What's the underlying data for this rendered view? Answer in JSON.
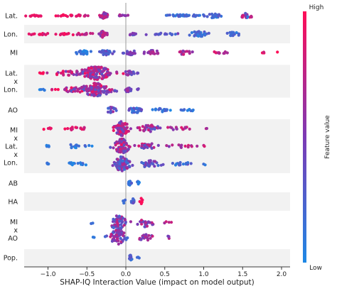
{
  "chart_data": {
    "type": "scatter",
    "subtype": "beeswarm",
    "xlabel": "SHAP-IQ Interaction Value (impact on model output)",
    "xlim": [
      -1.32,
      2.1
    ],
    "xticks": [
      "−1.0",
      "−0.5",
      "0.0",
      "0.5",
      "1.0",
      "1.5",
      "2.0"
    ],
    "xtick_values": [
      -1.0,
      -0.5,
      0.0,
      0.5,
      1.0,
      1.5,
      2.0
    ],
    "grid": false,
    "colorbar": {
      "title": "Feature value",
      "high_label": "High",
      "low_label": "Low",
      "low_color": "#1e88e5",
      "high_color": "#ff0d57"
    },
    "row_band_color": "#f2f2f2",
    "zero_line_color": "#999999",
    "rows": [
      {
        "id": "lat",
        "label_lines": [
          "Lat."
        ],
        "shaded": false,
        "clusters": [
          {
            "center": -1.15,
            "spread": 0.12,
            "n": 14,
            "width": 0.05,
            "cmin": 0.85,
            "cmax": 1.0
          },
          {
            "center": -0.78,
            "spread": 0.13,
            "n": 14,
            "width": 0.05,
            "cmin": 0.8,
            "cmax": 1.0
          },
          {
            "center": -0.55,
            "spread": 0.08,
            "n": 12,
            "width": 0.06,
            "cmin": 0.7,
            "cmax": 0.95
          },
          {
            "center": -0.28,
            "spread": 0.05,
            "n": 28,
            "width": 0.6,
            "cmin": 0.45,
            "cmax": 0.85
          },
          {
            "center": -0.05,
            "spread": 0.08,
            "n": 8,
            "width": 0.08,
            "cmin": 0.4,
            "cmax": 0.7
          },
          {
            "center": 0.75,
            "spread": 0.22,
            "n": 36,
            "width": 0.08,
            "cmin": 0.05,
            "cmax": 0.3
          },
          {
            "center": 1.1,
            "spread": 0.12,
            "n": 26,
            "width": 0.4,
            "cmin": 0.05,
            "cmax": 0.35
          },
          {
            "center": 1.55,
            "spread": 0.1,
            "n": 20,
            "width": 0.4,
            "cmin": 0.05,
            "cmax": 0.9
          }
        ]
      },
      {
        "id": "lon",
        "label_lines": [
          "Lon."
        ],
        "shaded": true,
        "clusters": [
          {
            "center": -1.1,
            "spread": 0.12,
            "n": 12,
            "width": 0.05,
            "cmin": 0.85,
            "cmax": 1.0
          },
          {
            "center": -0.8,
            "spread": 0.13,
            "n": 14,
            "width": 0.05,
            "cmin": 0.8,
            "cmax": 1.0
          },
          {
            "center": -0.55,
            "spread": 0.1,
            "n": 12,
            "width": 0.06,
            "cmin": 0.7,
            "cmax": 0.95
          },
          {
            "center": -0.3,
            "spread": 0.04,
            "n": 30,
            "width": 0.6,
            "cmin": 0.4,
            "cmax": 0.85
          },
          {
            "center": 0.1,
            "spread": 0.1,
            "n": 10,
            "width": 0.08,
            "cmin": 0.25,
            "cmax": 0.6
          },
          {
            "center": 0.5,
            "spread": 0.15,
            "n": 16,
            "width": 0.08,
            "cmin": 0.1,
            "cmax": 0.5
          },
          {
            "center": 0.95,
            "spread": 0.12,
            "n": 24,
            "width": 0.5,
            "cmin": 0.05,
            "cmax": 0.35
          },
          {
            "center": 1.38,
            "spread": 0.08,
            "n": 14,
            "width": 0.3,
            "cmin": 0.05,
            "cmax": 0.3
          }
        ]
      },
      {
        "id": "mi",
        "label_lines": [
          "MI"
        ],
        "shaded": false,
        "clusters": [
          {
            "center": -0.55,
            "spread": 0.1,
            "n": 24,
            "width": 0.35,
            "cmin": 0.0,
            "cmax": 0.2
          },
          {
            "center": -0.25,
            "spread": 0.08,
            "n": 22,
            "width": 0.45,
            "cmin": 0.15,
            "cmax": 0.45
          },
          {
            "center": 0.05,
            "spread": 0.1,
            "n": 18,
            "width": 0.4,
            "cmin": 0.3,
            "cmax": 0.6
          },
          {
            "center": 0.35,
            "spread": 0.1,
            "n": 18,
            "width": 0.35,
            "cmin": 0.45,
            "cmax": 0.75
          },
          {
            "center": 0.75,
            "spread": 0.12,
            "n": 14,
            "width": 0.3,
            "cmin": 0.55,
            "cmax": 0.85
          },
          {
            "center": 1.2,
            "spread": 0.12,
            "n": 10,
            "width": 0.1,
            "cmin": 0.65,
            "cmax": 0.9
          },
          {
            "center": 1.75,
            "spread": 0.06,
            "n": 3,
            "width": 0.05,
            "cmin": 0.75,
            "cmax": 0.95
          },
          {
            "center": 1.95,
            "spread": 0.01,
            "n": 1,
            "width": 0.0,
            "cmin": 0.98,
            "cmax": 1.0
          }
        ]
      },
      {
        "id": "lat-lon-a",
        "label_lines": [],
        "shaded": true,
        "clusters": [
          {
            "center": -1.08,
            "spread": 0.05,
            "n": 4,
            "width": 0.0,
            "cmin": 0.95,
            "cmax": 1.0
          },
          {
            "center": -0.72,
            "spread": 0.2,
            "n": 26,
            "width": 0.25,
            "cmin": 0.5,
            "cmax": 1.0
          },
          {
            "center": -0.38,
            "spread": 0.2,
            "n": 130,
            "width": 1.0,
            "cmin": 0.3,
            "cmax": 0.95
          },
          {
            "center": 0.03,
            "spread": 0.06,
            "n": 14,
            "width": 0.3,
            "cmin": 0.3,
            "cmax": 0.7
          },
          {
            "center": 0.15,
            "spread": 0.02,
            "n": 3,
            "width": 0.0,
            "cmin": 0.3,
            "cmax": 0.5
          }
        ]
      },
      {
        "id": "lat-lon-b",
        "label_lines": [],
        "shaded": true,
        "clusters": [
          {
            "center": -1.08,
            "spread": 0.05,
            "n": 4,
            "width": 0.0,
            "cmin": 0.0,
            "cmax": 0.15
          },
          {
            "center": -0.72,
            "spread": 0.2,
            "n": 26,
            "width": 0.25,
            "cmin": 0.5,
            "cmax": 1.0
          },
          {
            "center": -0.38,
            "spread": 0.2,
            "n": 130,
            "width": 1.0,
            "cmin": 0.3,
            "cmax": 0.95
          },
          {
            "center": 0.03,
            "spread": 0.06,
            "n": 14,
            "width": 0.3,
            "cmin": 0.3,
            "cmax": 0.7
          },
          {
            "center": 0.15,
            "spread": 0.02,
            "n": 3,
            "width": 0.0,
            "cmin": 0.3,
            "cmax": 0.5
          }
        ]
      },
      {
        "id": "ao",
        "label_lines": [
          "AO"
        ],
        "shaded": false,
        "clusters": [
          {
            "center": -0.2,
            "spread": 0.06,
            "n": 18,
            "width": 0.7,
            "cmin": 0.15,
            "cmax": 0.65
          },
          {
            "center": 0.12,
            "spread": 0.08,
            "n": 22,
            "width": 0.7,
            "cmin": 0.05,
            "cmax": 0.45
          },
          {
            "center": 0.45,
            "spread": 0.1,
            "n": 16,
            "width": 0.4,
            "cmin": 0.0,
            "cmax": 0.3
          },
          {
            "center": 0.78,
            "spread": 0.08,
            "n": 10,
            "width": 0.2,
            "cmin": 0.0,
            "cmax": 0.25
          }
        ]
      },
      {
        "id": "mi-lat-lon-a",
        "label_lines": [],
        "shaded": true,
        "clusters": [
          {
            "center": -1.0,
            "spread": 0.05,
            "n": 5,
            "width": 0.0,
            "cmin": 0.85,
            "cmax": 1.0
          },
          {
            "center": -0.65,
            "spread": 0.15,
            "n": 14,
            "width": 0.1,
            "cmin": 0.75,
            "cmax": 1.0
          },
          {
            "center": -0.05,
            "spread": 0.09,
            "n": 80,
            "width": 1.0,
            "cmin": 0.3,
            "cmax": 0.95
          },
          {
            "center": 0.3,
            "spread": 0.12,
            "n": 26,
            "width": 0.4,
            "cmin": 0.25,
            "cmax": 0.9
          },
          {
            "center": 0.7,
            "spread": 0.15,
            "n": 14,
            "width": 0.1,
            "cmin": 0.5,
            "cmax": 0.9
          },
          {
            "center": 1.02,
            "spread": 0.04,
            "n": 2,
            "width": 0.0,
            "cmin": 0.6,
            "cmax": 0.9
          }
        ]
      },
      {
        "id": "mi-lat-lon-b",
        "label_lines": [],
        "shaded": true,
        "clusters": [
          {
            "center": -1.0,
            "spread": 0.05,
            "n": 5,
            "width": 0.0,
            "cmin": 0.0,
            "cmax": 0.2
          },
          {
            "center": -0.65,
            "spread": 0.15,
            "n": 14,
            "width": 0.1,
            "cmin": 0.0,
            "cmax": 0.25
          },
          {
            "center": -0.05,
            "spread": 0.09,
            "n": 80,
            "width": 1.0,
            "cmin": 0.3,
            "cmax": 0.95
          },
          {
            "center": 0.3,
            "spread": 0.12,
            "n": 26,
            "width": 0.4,
            "cmin": 0.25,
            "cmax": 0.9
          },
          {
            "center": 0.7,
            "spread": 0.15,
            "n": 14,
            "width": 0.1,
            "cmin": 0.5,
            "cmax": 0.9
          },
          {
            "center": 1.02,
            "spread": 0.04,
            "n": 2,
            "width": 0.0,
            "cmin": 0.6,
            "cmax": 0.9
          }
        ]
      },
      {
        "id": "mi-lat-lon-c",
        "label_lines": [],
        "shaded": true,
        "clusters": [
          {
            "center": -1.0,
            "spread": 0.05,
            "n": 5,
            "width": 0.0,
            "cmin": 0.0,
            "cmax": 0.2
          },
          {
            "center": -0.65,
            "spread": 0.15,
            "n": 14,
            "width": 0.1,
            "cmin": 0.0,
            "cmax": 0.25
          },
          {
            "center": -0.05,
            "spread": 0.09,
            "n": 80,
            "width": 1.0,
            "cmin": 0.1,
            "cmax": 0.7
          },
          {
            "center": 0.3,
            "spread": 0.12,
            "n": 26,
            "width": 0.4,
            "cmin": 0.1,
            "cmax": 0.6
          },
          {
            "center": 0.7,
            "spread": 0.15,
            "n": 14,
            "width": 0.1,
            "cmin": 0.05,
            "cmax": 0.4
          },
          {
            "center": 1.02,
            "spread": 0.04,
            "n": 2,
            "width": 0.0,
            "cmin": 0.0,
            "cmax": 0.3
          }
        ]
      },
      {
        "id": "ab",
        "label_lines": [
          "AB"
        ],
        "shaded": false,
        "clusters": [
          {
            "center": 0.05,
            "spread": 0.025,
            "n": 16,
            "width": 0.6,
            "cmin": 0.05,
            "cmax": 0.3
          },
          {
            "center": 0.16,
            "spread": 0.02,
            "n": 8,
            "width": 0.5,
            "cmin": 0.0,
            "cmax": 0.2
          }
        ]
      },
      {
        "id": "ha",
        "label_lines": [
          "HA"
        ],
        "shaded": true,
        "clusters": [
          {
            "center": -0.02,
            "spread": 0.02,
            "n": 4,
            "width": 0.4,
            "cmin": 0.1,
            "cmax": 0.3
          },
          {
            "center": 0.1,
            "spread": 0.02,
            "n": 10,
            "width": 0.8,
            "cmin": 0.15,
            "cmax": 0.4
          },
          {
            "center": 0.2,
            "spread": 0.015,
            "n": 6,
            "width": 0.8,
            "cmin": 0.9,
            "cmax": 1.0
          }
        ]
      },
      {
        "id": "mi-ao-a",
        "label_lines": [],
        "shaded": false,
        "clusters": [
          {
            "center": -0.42,
            "spread": 0.03,
            "n": 2,
            "width": 0.0,
            "cmin": 0.05,
            "cmax": 0.2
          },
          {
            "center": -0.1,
            "spread": 0.1,
            "n": 60,
            "width": 1.0,
            "cmin": 0.15,
            "cmax": 0.8
          },
          {
            "center": 0.25,
            "spread": 0.08,
            "n": 22,
            "width": 0.5,
            "cmin": 0.3,
            "cmax": 0.85
          },
          {
            "center": 0.55,
            "spread": 0.04,
            "n": 4,
            "width": 0.1,
            "cmin": 0.4,
            "cmax": 0.8
          }
        ]
      },
      {
        "id": "mi-ao-b",
        "label_lines": [],
        "shaded": false,
        "clusters": [
          {
            "center": -0.42,
            "spread": 0.03,
            "n": 2,
            "width": 0.0,
            "cmin": 0.05,
            "cmax": 0.2
          },
          {
            "center": -0.1,
            "spread": 0.1,
            "n": 60,
            "width": 1.0,
            "cmin": 0.15,
            "cmax": 0.8
          },
          {
            "center": 0.25,
            "spread": 0.08,
            "n": 22,
            "width": 0.5,
            "cmin": 0.3,
            "cmax": 0.85
          },
          {
            "center": 0.55,
            "spread": 0.04,
            "n": 4,
            "width": 0.1,
            "cmin": 0.4,
            "cmax": 0.8
          }
        ]
      },
      {
        "id": "pop",
        "label_lines": [
          "Pop."
        ],
        "shaded": true,
        "clusters": [
          {
            "center": 0.06,
            "spread": 0.025,
            "n": 14,
            "width": 0.6,
            "cmin": 0.1,
            "cmax": 0.45
          },
          {
            "center": 0.16,
            "spread": 0.01,
            "n": 3,
            "width": 0.0,
            "cmin": 0.1,
            "cmax": 0.3
          }
        ]
      }
    ],
    "stacked_labels": [
      {
        "rows": [
          "lat-lon-a",
          "lat-lon-b"
        ],
        "lines": [
          "Lat.",
          "x",
          "Lon."
        ]
      },
      {
        "rows": [
          "mi-lat-lon-a",
          "mi-lat-lon-c"
        ],
        "lines": [
          "MI",
          "x",
          "Lat.",
          "x",
          "Lon."
        ]
      },
      {
        "rows": [
          "mi-ao-a",
          "mi-ao-b"
        ],
        "lines": [
          "MI",
          "x",
          "AO"
        ]
      }
    ]
  }
}
